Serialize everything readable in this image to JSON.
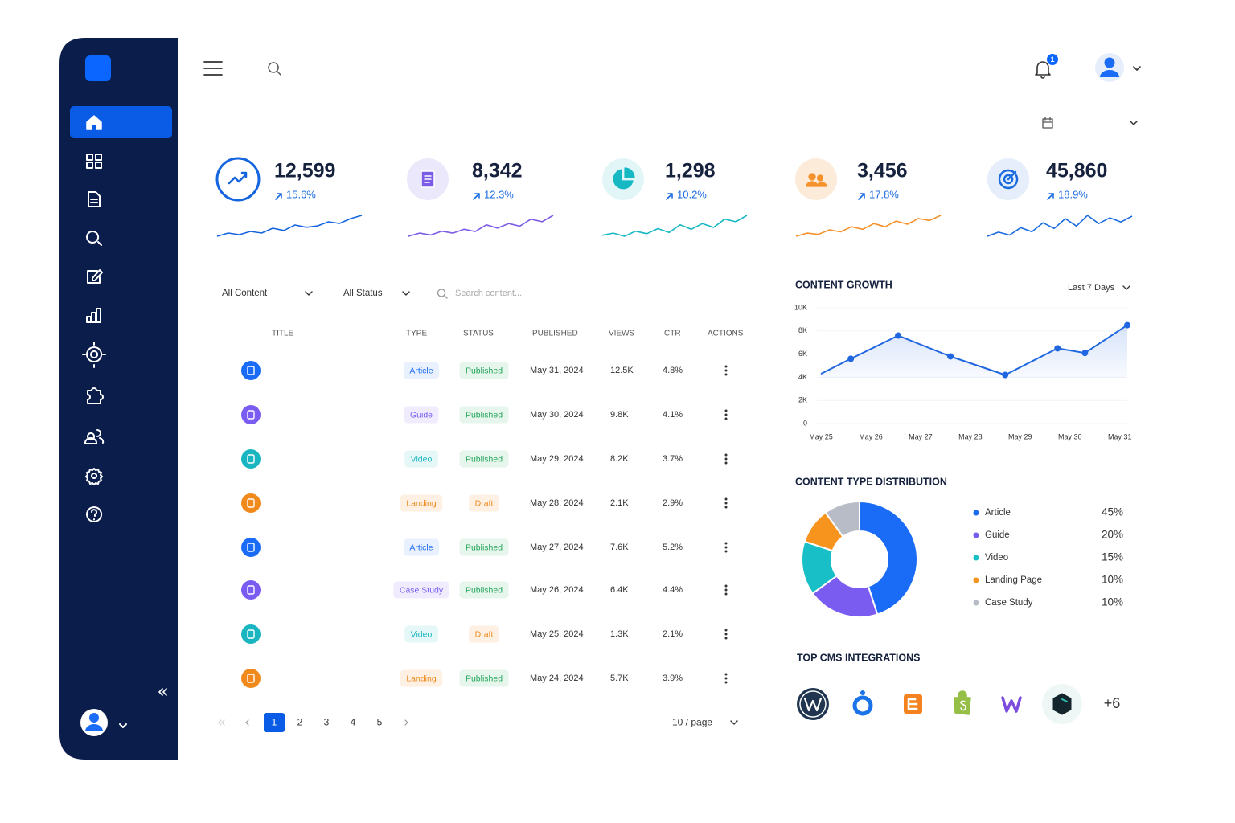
{
  "header": {
    "notifications": 1
  },
  "stats": [
    {
      "value": "12,599",
      "change": "15.6%",
      "trend": [
        2,
        3,
        2.5,
        3.5,
        3,
        4.5,
        3.8,
        5.5,
        4.8,
        5.2,
        6.5,
        6,
        7.5,
        8.5
      ]
    },
    {
      "value": "8,342",
      "change": "12.3%",
      "trend": [
        2,
        3,
        2.4,
        3.6,
        3,
        4.2,
        3.5,
        5.6,
        4.6,
        6,
        5.2,
        7.4,
        6.6,
        8.6
      ]
    },
    {
      "value": "1,298",
      "change": "10.2%",
      "trend": [
        2.5,
        3.2,
        2.2,
        3.8,
        3,
        4.6,
        3.4,
        5.8,
        4.4,
        6.2,
        5,
        7.6,
        6.8,
        8.8
      ]
    },
    {
      "value": "3,456",
      "change": "17.8%",
      "trend": [
        2,
        3,
        2.6,
        4,
        3.4,
        5,
        4.2,
        6,
        5,
        6.8,
        5.8,
        7.6,
        7,
        8.6
      ]
    },
    {
      "value": "45,860",
      "change": "18.9%",
      "trend": [
        2.5,
        3.5,
        2.8,
        4.6,
        3.6,
        5.8,
        4.4,
        6.8,
        5,
        7.6,
        5.6,
        7,
        6,
        7.4
      ]
    }
  ],
  "filters": {
    "content": "All Content",
    "status": "All Status",
    "search": "Search content..."
  },
  "table": {
    "columns": [
      "TITLE",
      "TYPE",
      "STATUS",
      "PUBLISHED",
      "VIEWS",
      "CTR",
      "ACTIONS"
    ],
    "rows": [
      [
        "Article",
        "Published",
        "May 31, 2024",
        "12.5K",
        "4.8%"
      ],
      [
        "Guide",
        "Published",
        "May 30, 2024",
        "9.8K",
        "4.1%"
      ],
      [
        "Video",
        "Published",
        "May 29, 2024",
        "8.2K",
        "3.7%"
      ],
      [
        "Landing",
        "Draft",
        "May 28, 2024",
        "2.1K",
        "2.9%"
      ],
      [
        "Article",
        "Published",
        "May 27, 2024",
        "7.6K",
        "5.2%"
      ],
      [
        "Case Study",
        "Published",
        "May 26, 2024",
        "6.4K",
        "4.4%"
      ],
      [
        "Video",
        "Draft",
        "May 25, 2024",
        "1.3K",
        "2.1%"
      ],
      [
        "Landing",
        "Published",
        "May 24, 2024",
        "5.7K",
        "3.9%"
      ]
    ]
  },
  "pagination": {
    "pages": [
      1,
      2,
      3,
      4,
      5
    ],
    "page_size": "10 / page"
  },
  "chart_data": [
    {
      "type": "line",
      "title": "CONTENT GROWTH",
      "range": "Last 7 Days",
      "color": "#1f66e0",
      "grid": true,
      "x": [
        0,
        0.6,
        1.55,
        2.6,
        3.7,
        4.75,
        5.3,
        6.15
      ],
      "values": [
        4300,
        5600,
        7600,
        5800,
        4200,
        6500,
        6100,
        8500
      ],
      "xlim": [
        0,
        6.15
      ],
      "xticks": [
        {
          "value": 0,
          "label": "May 25"
        },
        {
          "value": 1,
          "label": "May 26"
        },
        {
          "value": 2,
          "label": "May 27"
        },
        {
          "value": 3,
          "label": "May 28"
        },
        {
          "value": 4,
          "label": "May 29"
        },
        {
          "value": 5,
          "label": "May 30"
        },
        {
          "value": 6,
          "label": "May 31"
        }
      ],
      "ylim": [
        0,
        10000
      ],
      "yticks": [
        0,
        {
          "value": 2000,
          "label": "2K"
        },
        {
          "value": 4000,
          "label": "4K"
        },
        {
          "value": 6000,
          "label": "6K"
        },
        {
          "value": 8000,
          "label": "8K"
        },
        {
          "value": 10000,
          "label": "10K"
        }
      ]
    },
    {
      "type": "pie",
      "title": "CONTENT TYPE DISTRIBUTION",
      "categories": [
        "Article",
        "Guide",
        "Video",
        "Landing Page",
        "Case Study"
      ],
      "values": [
        45,
        20,
        15,
        10,
        10
      ],
      "value_labels": [
        "45%",
        "20%",
        "15%",
        "10%",
        "10%"
      ],
      "colors": [
        "#1a6bf5",
        "#7b5cf0",
        "#19bfc6",
        "#f7941d",
        "#b8bcc6"
      ]
    }
  ],
  "integrations": {
    "title": "TOP CMS INTEGRATIONS",
    "more": "+6"
  }
}
